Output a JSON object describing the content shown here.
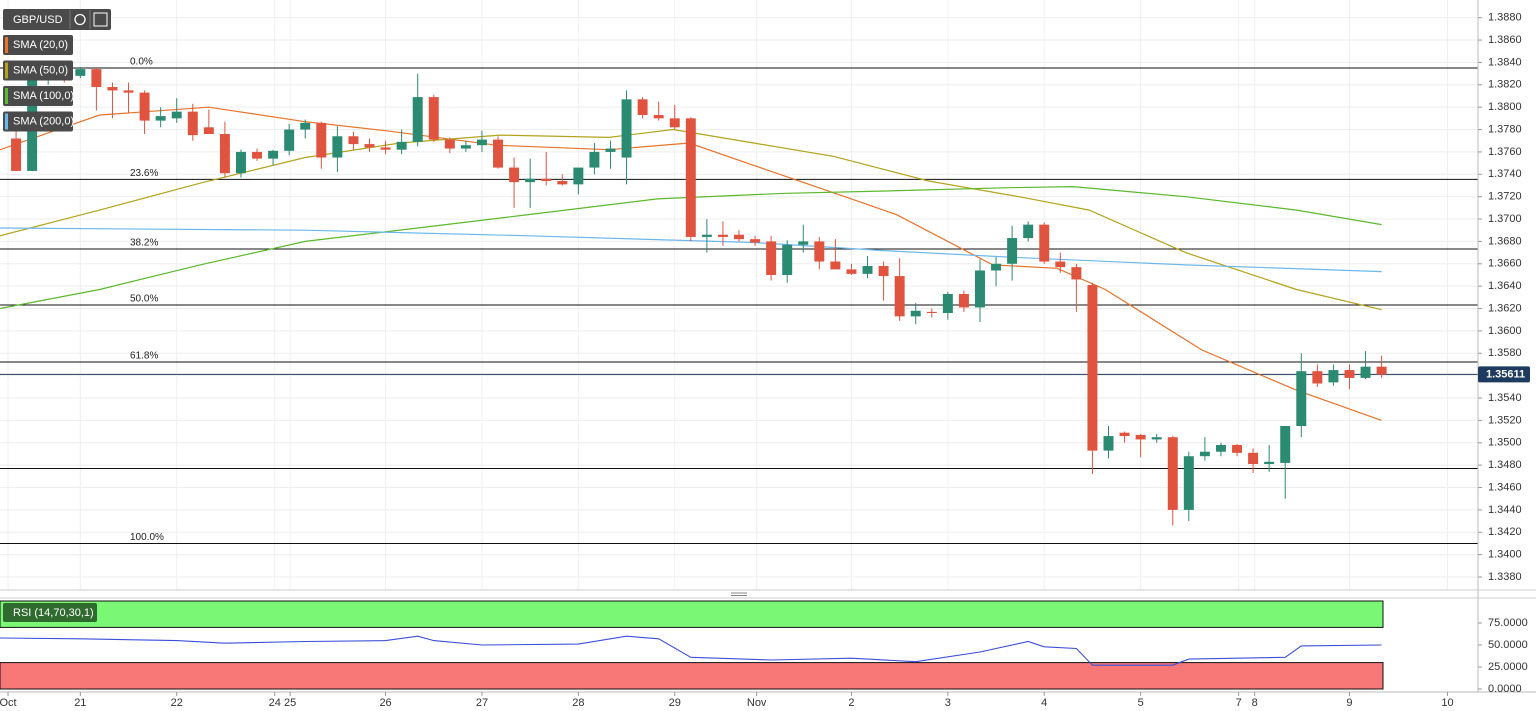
{
  "chart_data": [
    {
      "type": "candlestick",
      "title": "GBP/USD",
      "x": [
        0,
        1,
        2,
        3,
        4,
        5,
        6,
        7,
        8,
        9,
        10,
        11,
        12,
        13,
        14,
        15,
        16,
        17,
        18,
        19,
        20,
        21,
        22,
        23,
        24,
        25,
        26,
        27,
        28,
        29,
        30,
        31,
        32,
        33,
        34,
        35,
        36,
        37,
        38,
        39,
        40,
        41,
        42,
        43,
        44,
        45,
        46,
        47,
        48,
        49,
        50,
        51,
        52,
        53,
        54,
        55,
        56,
        57,
        58,
        59,
        60,
        61,
        62,
        63,
        64,
        65,
        66,
        67,
        68,
        69,
        70,
        71,
        72,
        73,
        74,
        75,
        76,
        77,
        78,
        79,
        80,
        81,
        82,
        83,
        84,
        85
      ],
      "open": [
        1.3772,
        1.3743,
        1.3826,
        1.383,
        1.3828,
        1.3834,
        1.3818,
        1.3815,
        1.3813,
        1.3788,
        1.379,
        1.3796,
        1.3782,
        1.3776,
        1.3741,
        1.376,
        1.3754,
        1.3761,
        1.378,
        1.3786,
        1.3755,
        1.3774,
        1.3767,
        1.3764,
        1.3762,
        1.3769,
        1.3809,
        1.3771,
        1.3763,
        1.3766,
        1.3771,
        1.3746,
        1.3733,
        1.3736,
        1.3734,
        1.3731,
        1.3746,
        1.376,
        1.3755,
        1.3807,
        1.3793,
        1.379,
        1.379,
        1.3684,
        1.3686,
        1.3686,
        1.3682,
        1.368,
        1.365,
        1.3677,
        1.368,
        1.3662,
        1.3655,
        1.3651,
        1.3658,
        1.3649,
        1.3613,
        1.3617,
        1.3616,
        1.3633,
        1.3621,
        1.3654,
        1.366,
        1.3683,
        1.3695,
        1.3662,
        1.3657,
        1.3641,
        1.3493,
        1.3509,
        1.3507,
        1.3503,
        1.3505,
        1.344,
        1.3488,
        1.3492,
        1.3498,
        1.3491,
        1.3481,
        1.3482,
        1.3515,
        1.3564,
        1.3554,
        1.3565,
        1.3558,
        1.3568
      ],
      "high": [
        1.3785,
        1.383,
        1.3833,
        1.3835,
        1.3836,
        1.3835,
        1.3822,
        1.3822,
        1.3815,
        1.38,
        1.3808,
        1.3803,
        1.3798,
        1.3787,
        1.3762,
        1.3763,
        1.3762,
        1.3785,
        1.3789,
        1.3787,
        1.3783,
        1.3778,
        1.3772,
        1.377,
        1.378,
        1.383,
        1.3811,
        1.3773,
        1.377,
        1.3779,
        1.3774,
        1.3755,
        1.3754,
        1.376,
        1.374,
        1.3745,
        1.3768,
        1.377,
        1.3815,
        1.3809,
        1.3805,
        1.3802,
        1.3791,
        1.37,
        1.3698,
        1.369,
        1.3685,
        1.3685,
        1.3681,
        1.3695,
        1.3684,
        1.3682,
        1.366,
        1.3667,
        1.3662,
        1.3665,
        1.3625,
        1.362,
        1.3635,
        1.3636,
        1.3664,
        1.3666,
        1.3694,
        1.3698,
        1.3697,
        1.367,
        1.366,
        1.3643,
        1.3515,
        1.351,
        1.3508,
        1.3508,
        1.3506,
        1.3492,
        1.3505,
        1.35,
        1.3499,
        1.3495,
        1.3498,
        1.3515,
        1.358,
        1.357,
        1.357,
        1.357,
        1.3582,
        1.3578
      ],
      "low": [
        1.3743,
        1.3743,
        1.382,
        1.3822,
        1.3826,
        1.3797,
        1.379,
        1.3795,
        1.3776,
        1.3782,
        1.3786,
        1.377,
        1.3776,
        1.3737,
        1.3737,
        1.3752,
        1.3748,
        1.3757,
        1.3772,
        1.3745,
        1.3742,
        1.3762,
        1.376,
        1.3758,
        1.3758,
        1.3765,
        1.3769,
        1.3759,
        1.376,
        1.376,
        1.3745,
        1.371,
        1.371,
        1.373,
        1.373,
        1.3722,
        1.374,
        1.3745,
        1.3731,
        1.379,
        1.3788,
        1.378,
        1.368,
        1.367,
        1.3676,
        1.368,
        1.3676,
        1.3645,
        1.3643,
        1.367,
        1.3655,
        1.3655,
        1.365,
        1.3647,
        1.3627,
        1.3609,
        1.3606,
        1.3612,
        1.361,
        1.3617,
        1.3608,
        1.364,
        1.3645,
        1.368,
        1.366,
        1.3652,
        1.3617,
        1.3472,
        1.3486,
        1.35,
        1.3487,
        1.35,
        1.3426,
        1.343,
        1.3484,
        1.3488,
        1.3488,
        1.3473,
        1.3474,
        1.345,
        1.3505,
        1.355,
        1.3551,
        1.3548,
        1.3557,
        1.3558
      ],
      "close": [
        1.3743,
        1.3826,
        1.383,
        1.3828,
        1.3834,
        1.3818,
        1.3815,
        1.3813,
        1.3788,
        1.3792,
        1.3796,
        1.3775,
        1.3776,
        1.3741,
        1.376,
        1.3754,
        1.3761,
        1.378,
        1.3786,
        1.3755,
        1.3774,
        1.3767,
        1.3764,
        1.3762,
        1.3769,
        1.3809,
        1.3771,
        1.3763,
        1.3766,
        1.3771,
        1.3746,
        1.3733,
        1.3736,
        1.3734,
        1.3731,
        1.3746,
        1.376,
        1.3763,
        1.3807,
        1.3793,
        1.379,
        1.3782,
        1.3684,
        1.3686,
        1.3684,
        1.3682,
        1.3679,
        1.365,
        1.3677,
        1.368,
        1.3662,
        1.3655,
        1.3651,
        1.3658,
        1.3649,
        1.3613,
        1.3618,
        1.3616,
        1.3633,
        1.3621,
        1.3654,
        1.366,
        1.3683,
        1.3695,
        1.3662,
        1.3657,
        1.3646,
        1.3493,
        1.3506,
        1.3506,
        1.3503,
        1.3505,
        1.344,
        1.3488,
        1.3492,
        1.3498,
        1.3491,
        1.3481,
        1.3483,
        1.3515,
        1.3564,
        1.3553,
        1.3565,
        1.3558,
        1.3568,
        1.35611
      ],
      "up_color": "#2b8a72",
      "down_color": "#e0533f",
      "overlays": [
        {
          "name": "SMA (20,0)",
          "color": "#e8732a",
          "x": [
            -1,
            5.2,
            12,
            18,
            23,
            29.9,
            36.9,
            41.9,
            45.9,
            51.8,
            54.8,
            60.8,
            64.8,
            67.8,
            73.8,
            79.7,
            85
          ],
          "values": [
            1.3762,
            1.3793,
            1.38,
            1.3787,
            1.3779,
            1.3766,
            1.3762,
            1.3768,
            1.3748,
            1.3719,
            1.3704,
            1.3659,
            1.3656,
            1.3637,
            1.3583,
            1.3547,
            1.352
          ]
        },
        {
          "name": "SMA (50,0)",
          "color": "#b4a31c",
          "x": [
            -1,
            5.2,
            11.45,
            18,
            23.9,
            30.1,
            36.9,
            40.9,
            45.9,
            50.9,
            56.8,
            62.8,
            66.8,
            72.8,
            79.7,
            85
          ],
          "values": [
            1.3685,
            1.3708,
            1.3732,
            1.3755,
            1.3768,
            1.3775,
            1.3773,
            1.378,
            1.3768,
            1.3756,
            1.3734,
            1.3719,
            1.3708,
            1.367,
            1.3637,
            1.3619
          ]
        },
        {
          "name": "SMA (100,0)",
          "color": "#5cb82e",
          "x": [
            -1,
            5.2,
            11.45,
            18,
            25,
            31.9,
            39.9,
            47.9,
            53.8,
            61.8,
            65.8,
            72.8,
            79.7,
            85
          ],
          "values": [
            1.362,
            1.3637,
            1.3659,
            1.368,
            1.3692,
            1.3704,
            1.3718,
            1.3723,
            1.3725,
            1.3728,
            1.3729,
            1.372,
            1.3708,
            1.3695
          ]
        },
        {
          "name": "SMA (200,0)",
          "color": "#6cb8ea",
          "x": [
            -1,
            18,
            31.9,
            45.9,
            53.8,
            61.8,
            72.8,
            85
          ],
          "values": [
            1.3692,
            1.369,
            1.3685,
            1.3679,
            1.3672,
            1.3666,
            1.3659,
            1.3653
          ]
        }
      ],
      "fib_levels": [
        {
          "label": "0.0%",
          "value": 1.3835
        },
        {
          "label": "23.6%",
          "value": 1.37355
        },
        {
          "label": "38.2%",
          "value": 1.36732
        },
        {
          "label": "50.0%",
          "value": 1.36232
        },
        {
          "label": "61.8%",
          "value": 1.35722
        },
        {
          "label": "100.0%",
          "value": 1.341
        }
      ],
      "lines": [
        1.3477
      ],
      "last_price": 1.35611,
      "xlim": [
        -1,
        91
      ],
      "ylim": [
        1.33684,
        1.38958
      ],
      "yticks": [
        {
          "value": 1.338,
          "label": "1.3380"
        },
        {
          "value": 1.34,
          "label": "1.3400"
        },
        {
          "value": 1.342,
          "label": "1.3420"
        },
        {
          "value": 1.344,
          "label": "1.3440"
        },
        {
          "value": 1.346,
          "label": "1.3460"
        },
        {
          "value": 1.348,
          "label": "1.3480"
        },
        {
          "value": 1.35,
          "label": "1.3500"
        },
        {
          "value": 1.352,
          "label": "1.3520"
        },
        {
          "value": 1.354,
          "label": "1.3540"
        },
        {
          "value": 1.356,
          "label": "1.3560"
        },
        {
          "value": 1.358,
          "label": "1.3580"
        },
        {
          "value": 1.36,
          "label": "1.3600"
        },
        {
          "value": 1.362,
          "label": "1.3620"
        },
        {
          "value": 1.364,
          "label": "1.3640"
        },
        {
          "value": 1.366,
          "label": "1.3660"
        },
        {
          "value": 1.368,
          "label": "1.3680"
        },
        {
          "value": 1.37,
          "label": "1.3700"
        },
        {
          "value": 1.372,
          "label": "1.3720"
        },
        {
          "value": 1.374,
          "label": "1.3740"
        },
        {
          "value": 1.376,
          "label": "1.3760"
        },
        {
          "value": 1.378,
          "label": "1.3780"
        },
        {
          "value": 1.38,
          "label": "1.3800"
        },
        {
          "value": 1.382,
          "label": "1.3820"
        },
        {
          "value": 1.384,
          "label": "1.3840"
        },
        {
          "value": 1.386,
          "label": "1.3860"
        },
        {
          "value": 1.388,
          "label": "1.3880"
        }
      ],
      "grid": true
    },
    {
      "type": "line",
      "series": [
        {
          "name": "RSI (14,70,30,1)",
          "color": "#3b4fd8",
          "x": [
            -1,
            4,
            10,
            13,
            18,
            23,
            25,
            26,
            29,
            35,
            38,
            40,
            42,
            47,
            52,
            56,
            60,
            63,
            64,
            66,
            67,
            72,
            73,
            79,
            80,
            85
          ],
          "values": [
            58,
            57,
            55,
            52,
            54,
            55,
            60,
            55,
            50,
            51,
            60,
            57,
            36,
            33,
            35,
            31,
            42,
            54,
            48,
            46,
            27,
            27,
            34,
            36,
            49,
            50
          ]
        }
      ],
      "bands": [
        {
          "from": 70,
          "to": 100,
          "color": "#7af774"
        },
        {
          "from": 0,
          "to": 30,
          "color": "#f87878"
        }
      ],
      "xlim": [
        -1,
        91
      ],
      "ylim": [
        0,
        100
      ],
      "yticks": [
        {
          "value": 0,
          "label": "0.0000"
        },
        {
          "value": 25,
          "label": "25.0000"
        },
        {
          "value": 50,
          "label": "50.0000"
        },
        {
          "value": 75,
          "label": "75.0000"
        }
      ],
      "xticks": [
        {
          "value": -0.5,
          "label": "Oct"
        },
        {
          "value": 4,
          "label": "21"
        },
        {
          "value": 10,
          "label": "22"
        },
        {
          "value": 16.1,
          "label": "24"
        },
        {
          "value": 17.06,
          "label": "25"
        },
        {
          "value": 23,
          "label": "26"
        },
        {
          "value": 29,
          "label": "27"
        },
        {
          "value": 35,
          "label": "28"
        },
        {
          "value": 41,
          "label": "29"
        },
        {
          "value": 46.1,
          "label": "Nov"
        },
        {
          "value": 52,
          "label": "2"
        },
        {
          "value": 58,
          "label": "3"
        },
        {
          "value": 64,
          "label": "4"
        },
        {
          "value": 70,
          "label": "5"
        },
        {
          "value": 76.1,
          "label": "7"
        },
        {
          "value": 77.1,
          "label": "8"
        },
        {
          "value": 83,
          "label": "9"
        },
        {
          "value": 89.1,
          "label": "10"
        }
      ],
      "grid": true
    }
  ]
}
